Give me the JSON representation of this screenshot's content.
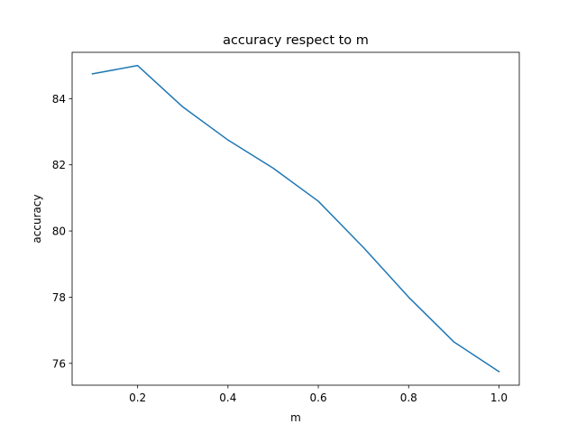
{
  "chart_data": {
    "type": "line",
    "title": "accuracy respect to m",
    "xlabel": "m",
    "ylabel": "accuracy",
    "xlim": [
      0.055,
      1.045
    ],
    "ylim": [
      75.34,
      85.4
    ],
    "xticks": [
      0.2,
      0.4,
      0.6,
      0.8,
      1.0
    ],
    "xtick_labels": [
      "0.2",
      "0.4",
      "0.6",
      "0.8",
      "1.0"
    ],
    "yticks": [
      76,
      78,
      80,
      82,
      84
    ],
    "ytick_labels": [
      "76",
      "78",
      "80",
      "82",
      "84"
    ],
    "grid": false,
    "series": [
      {
        "color": "#1f77b4",
        "x": [
          0.1,
          0.2,
          0.3,
          0.4,
          0.5,
          0.6,
          0.7,
          0.8,
          0.9,
          1.0
        ],
        "y": [
          84.75,
          85.0,
          83.75,
          82.75,
          81.9,
          80.9,
          79.5,
          78.0,
          76.65,
          75.75
        ]
      }
    ]
  }
}
